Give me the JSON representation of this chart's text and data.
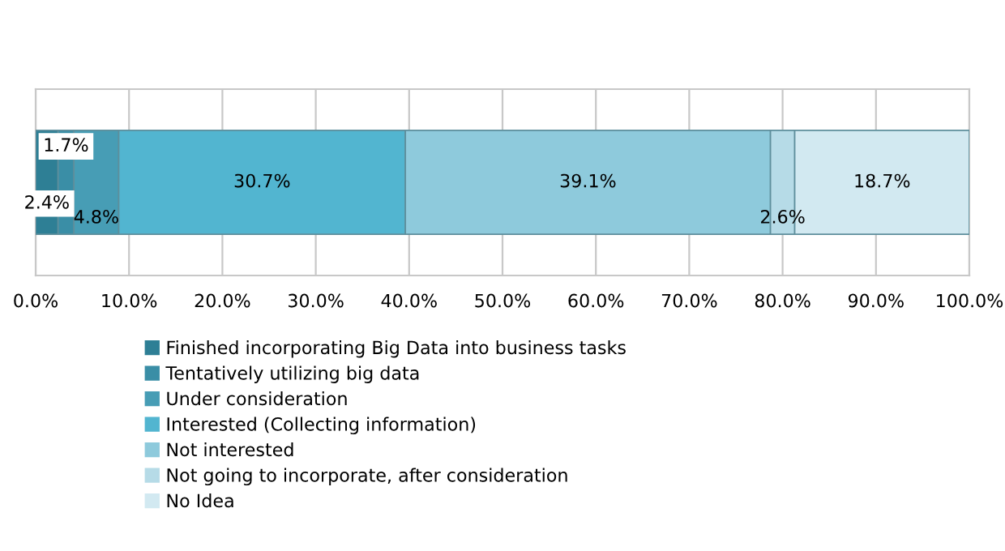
{
  "chart_data": {
    "type": "bar",
    "orientation": "horizontal",
    "stacked": true,
    "categories": [
      null
    ],
    "series": [
      {
        "name": "Finished incorporating Big Data into business tasks",
        "color": "#2e7f95",
        "values": [
          2.4
        ],
        "value_labels": [
          "2.4%"
        ]
      },
      {
        "name": "Tentatively utilizing big data",
        "color": "#3a8ea6",
        "values": [
          1.7
        ],
        "value_labels": [
          "1.7%"
        ]
      },
      {
        "name": "Under consideration",
        "color": "#479db5",
        "values": [
          4.8
        ],
        "value_labels": [
          "4.8%"
        ]
      },
      {
        "name": "Interested (Collecting information)",
        "color": "#52b5d0",
        "values": [
          30.7
        ],
        "value_labels": [
          "30.7%"
        ]
      },
      {
        "name": "Not interested",
        "color": "#8ecadc",
        "values": [
          39.1
        ],
        "value_labels": [
          "39.1%"
        ]
      },
      {
        "name": "Not going to incorporate, after consideration",
        "color": "#b6dbe7",
        "values": [
          2.6
        ],
        "value_labels": [
          "2.6%"
        ]
      },
      {
        "name": "No Idea",
        "color": "#d2e9f1",
        "values": [
          18.7
        ],
        "value_labels": [
          "18.7%"
        ]
      }
    ],
    "xlim": [
      0,
      100
    ],
    "xticks": [
      {
        "value": 0,
        "label": "0.0%"
      },
      {
        "value": 10,
        "label": "10.0%"
      },
      {
        "value": 20,
        "label": "20.0%"
      },
      {
        "value": 30,
        "label": "30.0%"
      },
      {
        "value": 40,
        "label": "40.0%"
      },
      {
        "value": 50,
        "label": "50.0%"
      },
      {
        "value": 60,
        "label": "60.0%"
      },
      {
        "value": 70,
        "label": "70.0%"
      },
      {
        "value": 80,
        "label": "80.0%"
      },
      {
        "value": 90,
        "label": "90.0%"
      },
      {
        "value": 100,
        "label": "100.0%"
      }
    ],
    "grid": "x",
    "legend": "bottom"
  }
}
